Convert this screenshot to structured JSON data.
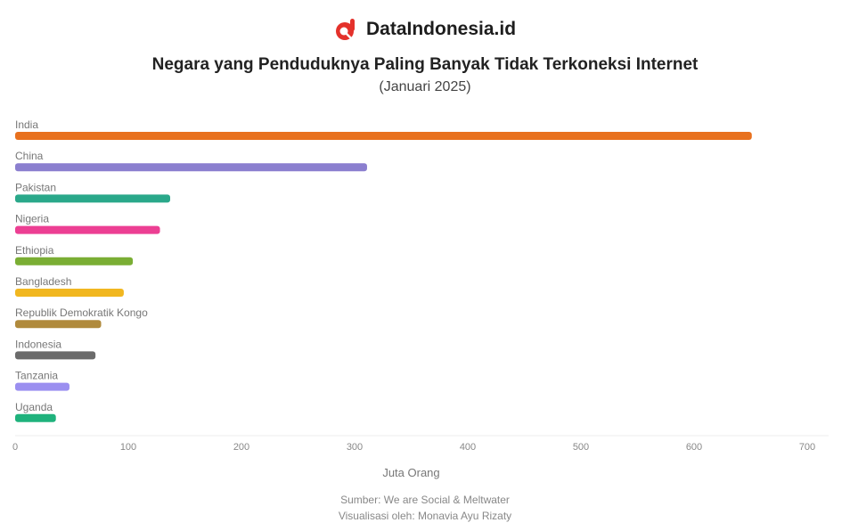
{
  "brand": {
    "name": "DataIndonesia.id",
    "accent": "#e4312b"
  },
  "chart_data": {
    "type": "bar",
    "orientation": "horizontal",
    "title": "Negara yang Penduduknya Paling Banyak Tidak Terkoneksi Internet",
    "subtitle": "(Januari 2025)",
    "categories": [
      "India",
      "China",
      "Pakistan",
      "Nigeria",
      "Ethiopia",
      "Bangladesh",
      "Republik Demokratik Kongo",
      "Indonesia",
      "Tanzania",
      "Uganda"
    ],
    "values": [
      651,
      311,
      137,
      128,
      104,
      96,
      76,
      71,
      48,
      36
    ],
    "colors": [
      "#e8711e",
      "#8b7fcf",
      "#2aa88a",
      "#ec3f93",
      "#7aae34",
      "#f1b720",
      "#b08a3c",
      "#6b6b6b",
      "#9b8ff0",
      "#1fb27c"
    ],
    "xlabel": "Juta Orang",
    "ylabel": "",
    "xlim": [
      0,
      700
    ],
    "xticks": [
      0,
      100,
      200,
      300,
      400,
      500,
      600,
      700
    ],
    "grid": false,
    "legend": "none"
  },
  "footer": {
    "source": "Sumber: We are Social & Meltwater",
    "credit": "Visualisasi oleh: Monavia Ayu Rizaty"
  }
}
